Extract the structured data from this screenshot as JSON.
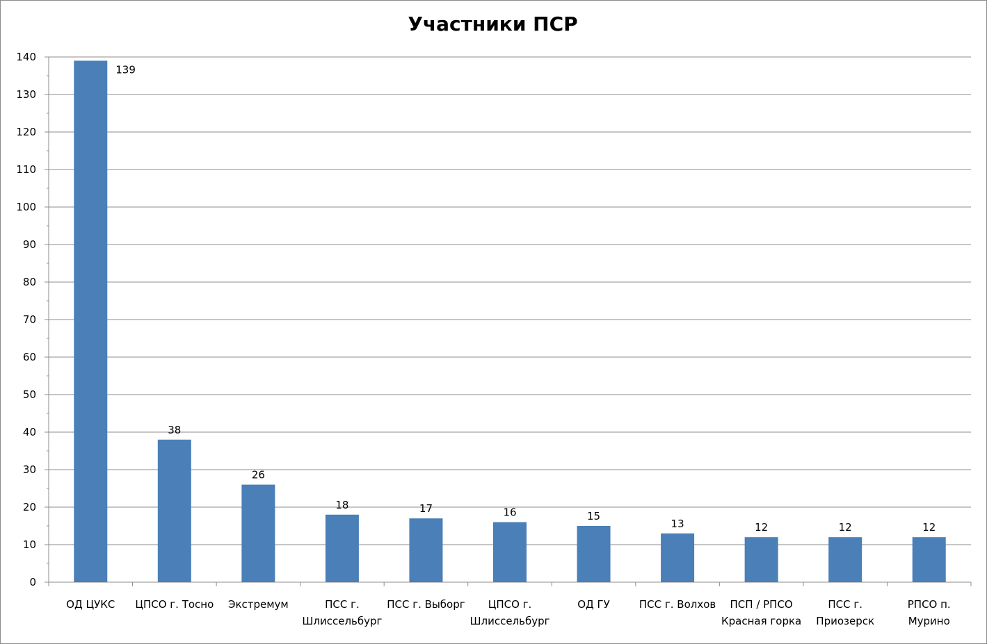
{
  "chart_data": {
    "type": "bar",
    "title": "Участники ПСР",
    "xlabel": "",
    "ylabel": "",
    "ylim": [
      0,
      140
    ],
    "ytick_step": 10,
    "grid": true,
    "legend": "none",
    "bar_color": "#4a7fb8",
    "categories": [
      "ОД ЦУКС",
      "ЦПСО г. Тосно",
      "Экстремум",
      "ПСС г. Шлиссельбург",
      "ПСС г. Выборг",
      "ЦПСО г. Шлиссельбург",
      "ОД ГУ",
      "ПСС г. Волхов",
      "ПСП / РПСО Красная горка",
      "ПСС г. Приозерск",
      "РПСО п. Мурино"
    ],
    "category_lines": [
      [
        "ОД ЦУКС"
      ],
      [
        "ЦПСО г. Тосно"
      ],
      [
        "Экстремум"
      ],
      [
        "ПСС г.",
        "Шлиссельбург"
      ],
      [
        "ПСС г. Выборг"
      ],
      [
        "ЦПСО г.",
        "Шлиссельбург"
      ],
      [
        "ОД ГУ"
      ],
      [
        "ПСС г. Волхов"
      ],
      [
        "ПСП / РПСО",
        "Красная горка"
      ],
      [
        "ПСС г.",
        "Приозерск"
      ],
      [
        "РПСО п.",
        "Мурино"
      ]
    ],
    "values": [
      139,
      38,
      26,
      18,
      17,
      16,
      15,
      13,
      12,
      12,
      12
    ]
  }
}
